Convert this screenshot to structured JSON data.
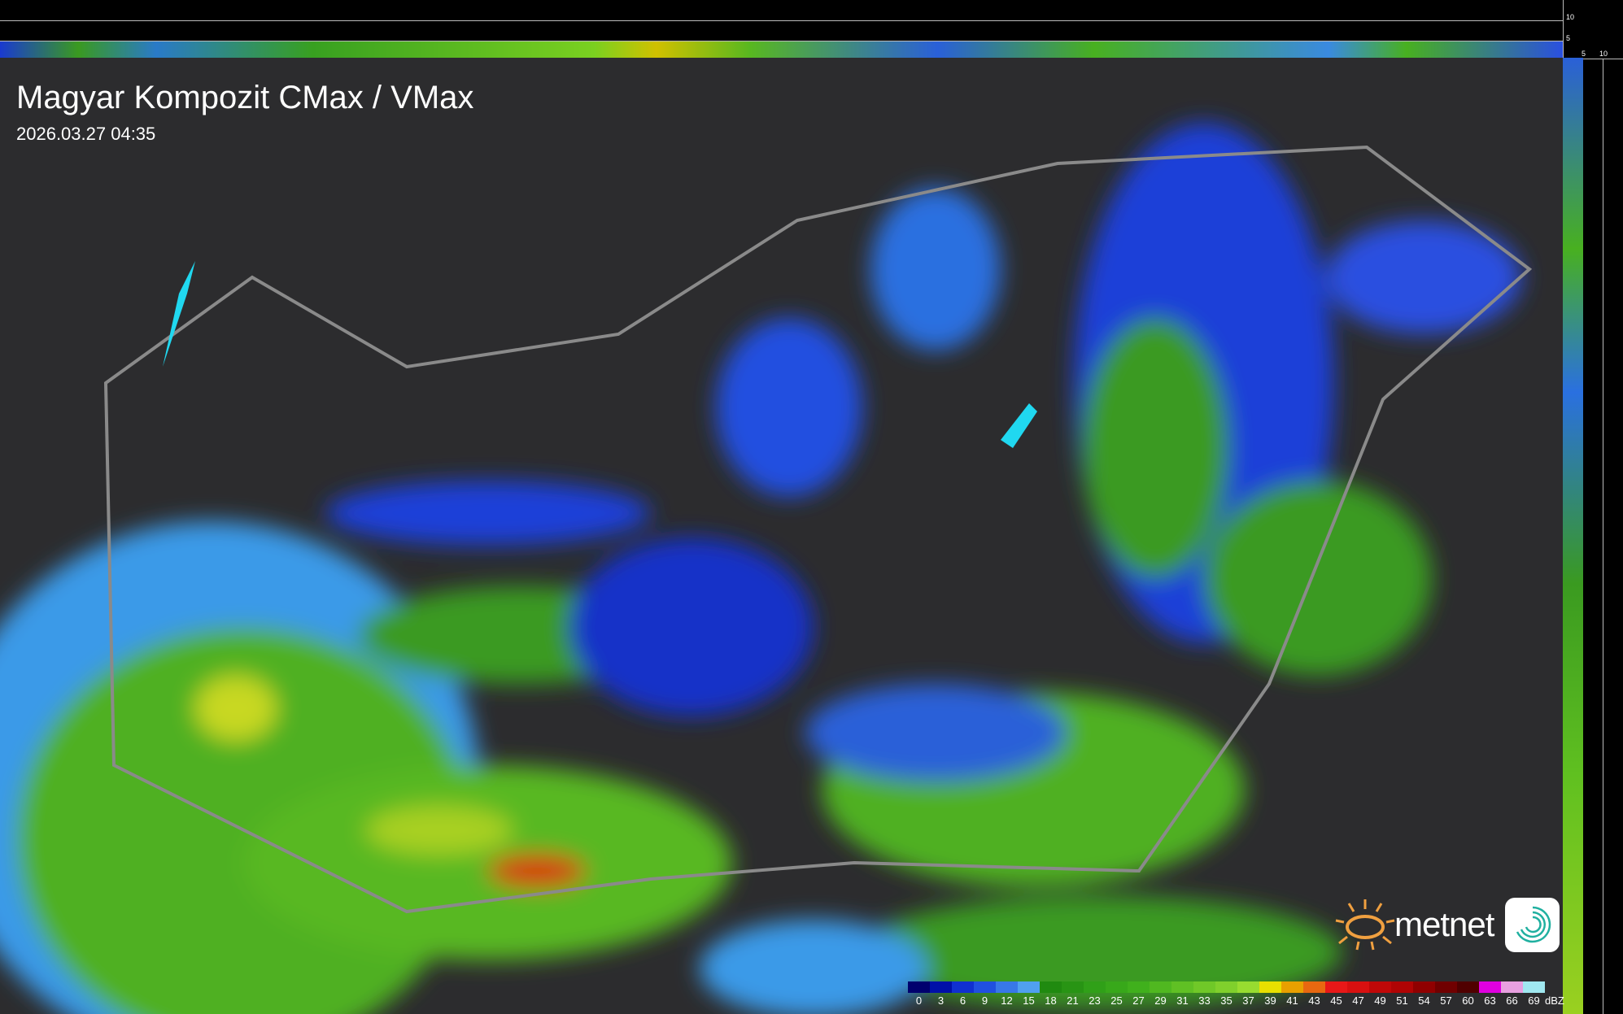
{
  "title": "Magyar Kompozit CMax / VMax",
  "timestamp": "2026.03.27 04:35",
  "profile_axes": {
    "top_ticks": [
      "10",
      "5"
    ],
    "right_ticks": [
      "5",
      "10"
    ]
  },
  "logo": {
    "brand": "metnet"
  },
  "legend": {
    "unit": "dBZ",
    "labels": [
      "0",
      "3",
      "6",
      "9",
      "12",
      "15",
      "18",
      "21",
      "23",
      "25",
      "27",
      "29",
      "31",
      "33",
      "35",
      "37",
      "39",
      "41",
      "43",
      "45",
      "47",
      "49",
      "51",
      "54",
      "57",
      "60",
      "63",
      "66",
      "69"
    ],
    "colors": [
      "#00006e",
      "#0010a8",
      "#1030d0",
      "#2050e0",
      "#3878e8",
      "#50a0f0",
      "#208a10",
      "#289414",
      "#30a018",
      "#38a81a",
      "#40b01c",
      "#50b820",
      "#60c024",
      "#70c828",
      "#80d02c",
      "#98dc30",
      "#e8e000",
      "#e8a000",
      "#e86810",
      "#e81818",
      "#d81010",
      "#c00808",
      "#b00404",
      "#900000",
      "#700000",
      "#500000",
      "#e000e0",
      "#e8a0e0",
      "#a0e8f0"
    ]
  }
}
